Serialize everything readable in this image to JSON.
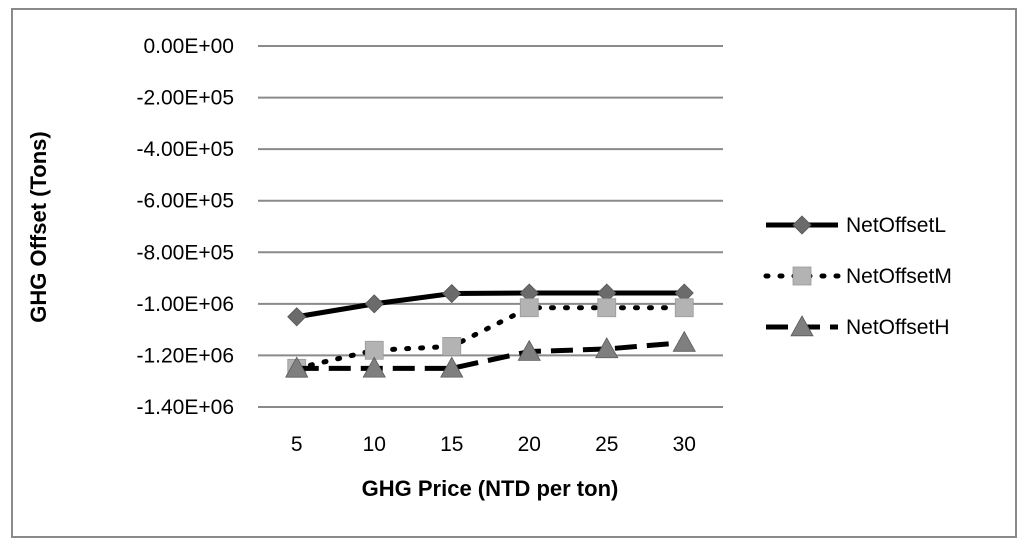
{
  "chart_data": {
    "type": "line",
    "title": "",
    "xlabel": "GHG Price (NTD per ton)",
    "ylabel": "GHG Offset (Tons)",
    "categories": [
      "5",
      "10",
      "15",
      "20",
      "25",
      "30"
    ],
    "ylim": [
      -1400000,
      0
    ],
    "yticks": [
      0,
      -200000,
      -400000,
      -600000,
      -800000,
      -1000000,
      -1200000,
      -1400000
    ],
    "ytick_labels": [
      "0.00E+00",
      "-2.00E+05",
      "-4.00E+05",
      "-6.00E+05",
      "-8.00E+05",
      "-1.00E+06",
      "-1.20E+06",
      "-1.40E+06"
    ],
    "grid": true,
    "legend_position": "right",
    "series": [
      {
        "name": "NetOffsetL",
        "values": [
          -1050000,
          -1000000,
          -960000,
          -958000,
          -958000,
          -958000
        ],
        "color": "#000000",
        "line_style": "solid",
        "marker": "diamond",
        "marker_color": "#6b6b6b"
      },
      {
        "name": "NetOffsetM",
        "values": [
          -1250000,
          -1180000,
          -1165000,
          -1015000,
          -1015000,
          -1015000
        ],
        "color": "#000000",
        "line_style": "dotted",
        "marker": "square",
        "marker_color": "#b3b3b3"
      },
      {
        "name": "NetOffsetH",
        "values": [
          -1250000,
          -1250000,
          -1250000,
          -1185000,
          -1175000,
          -1150000
        ],
        "color": "#000000",
        "line_style": "dashed",
        "marker": "triangle",
        "marker_color": "#7f7f7f"
      }
    ]
  }
}
